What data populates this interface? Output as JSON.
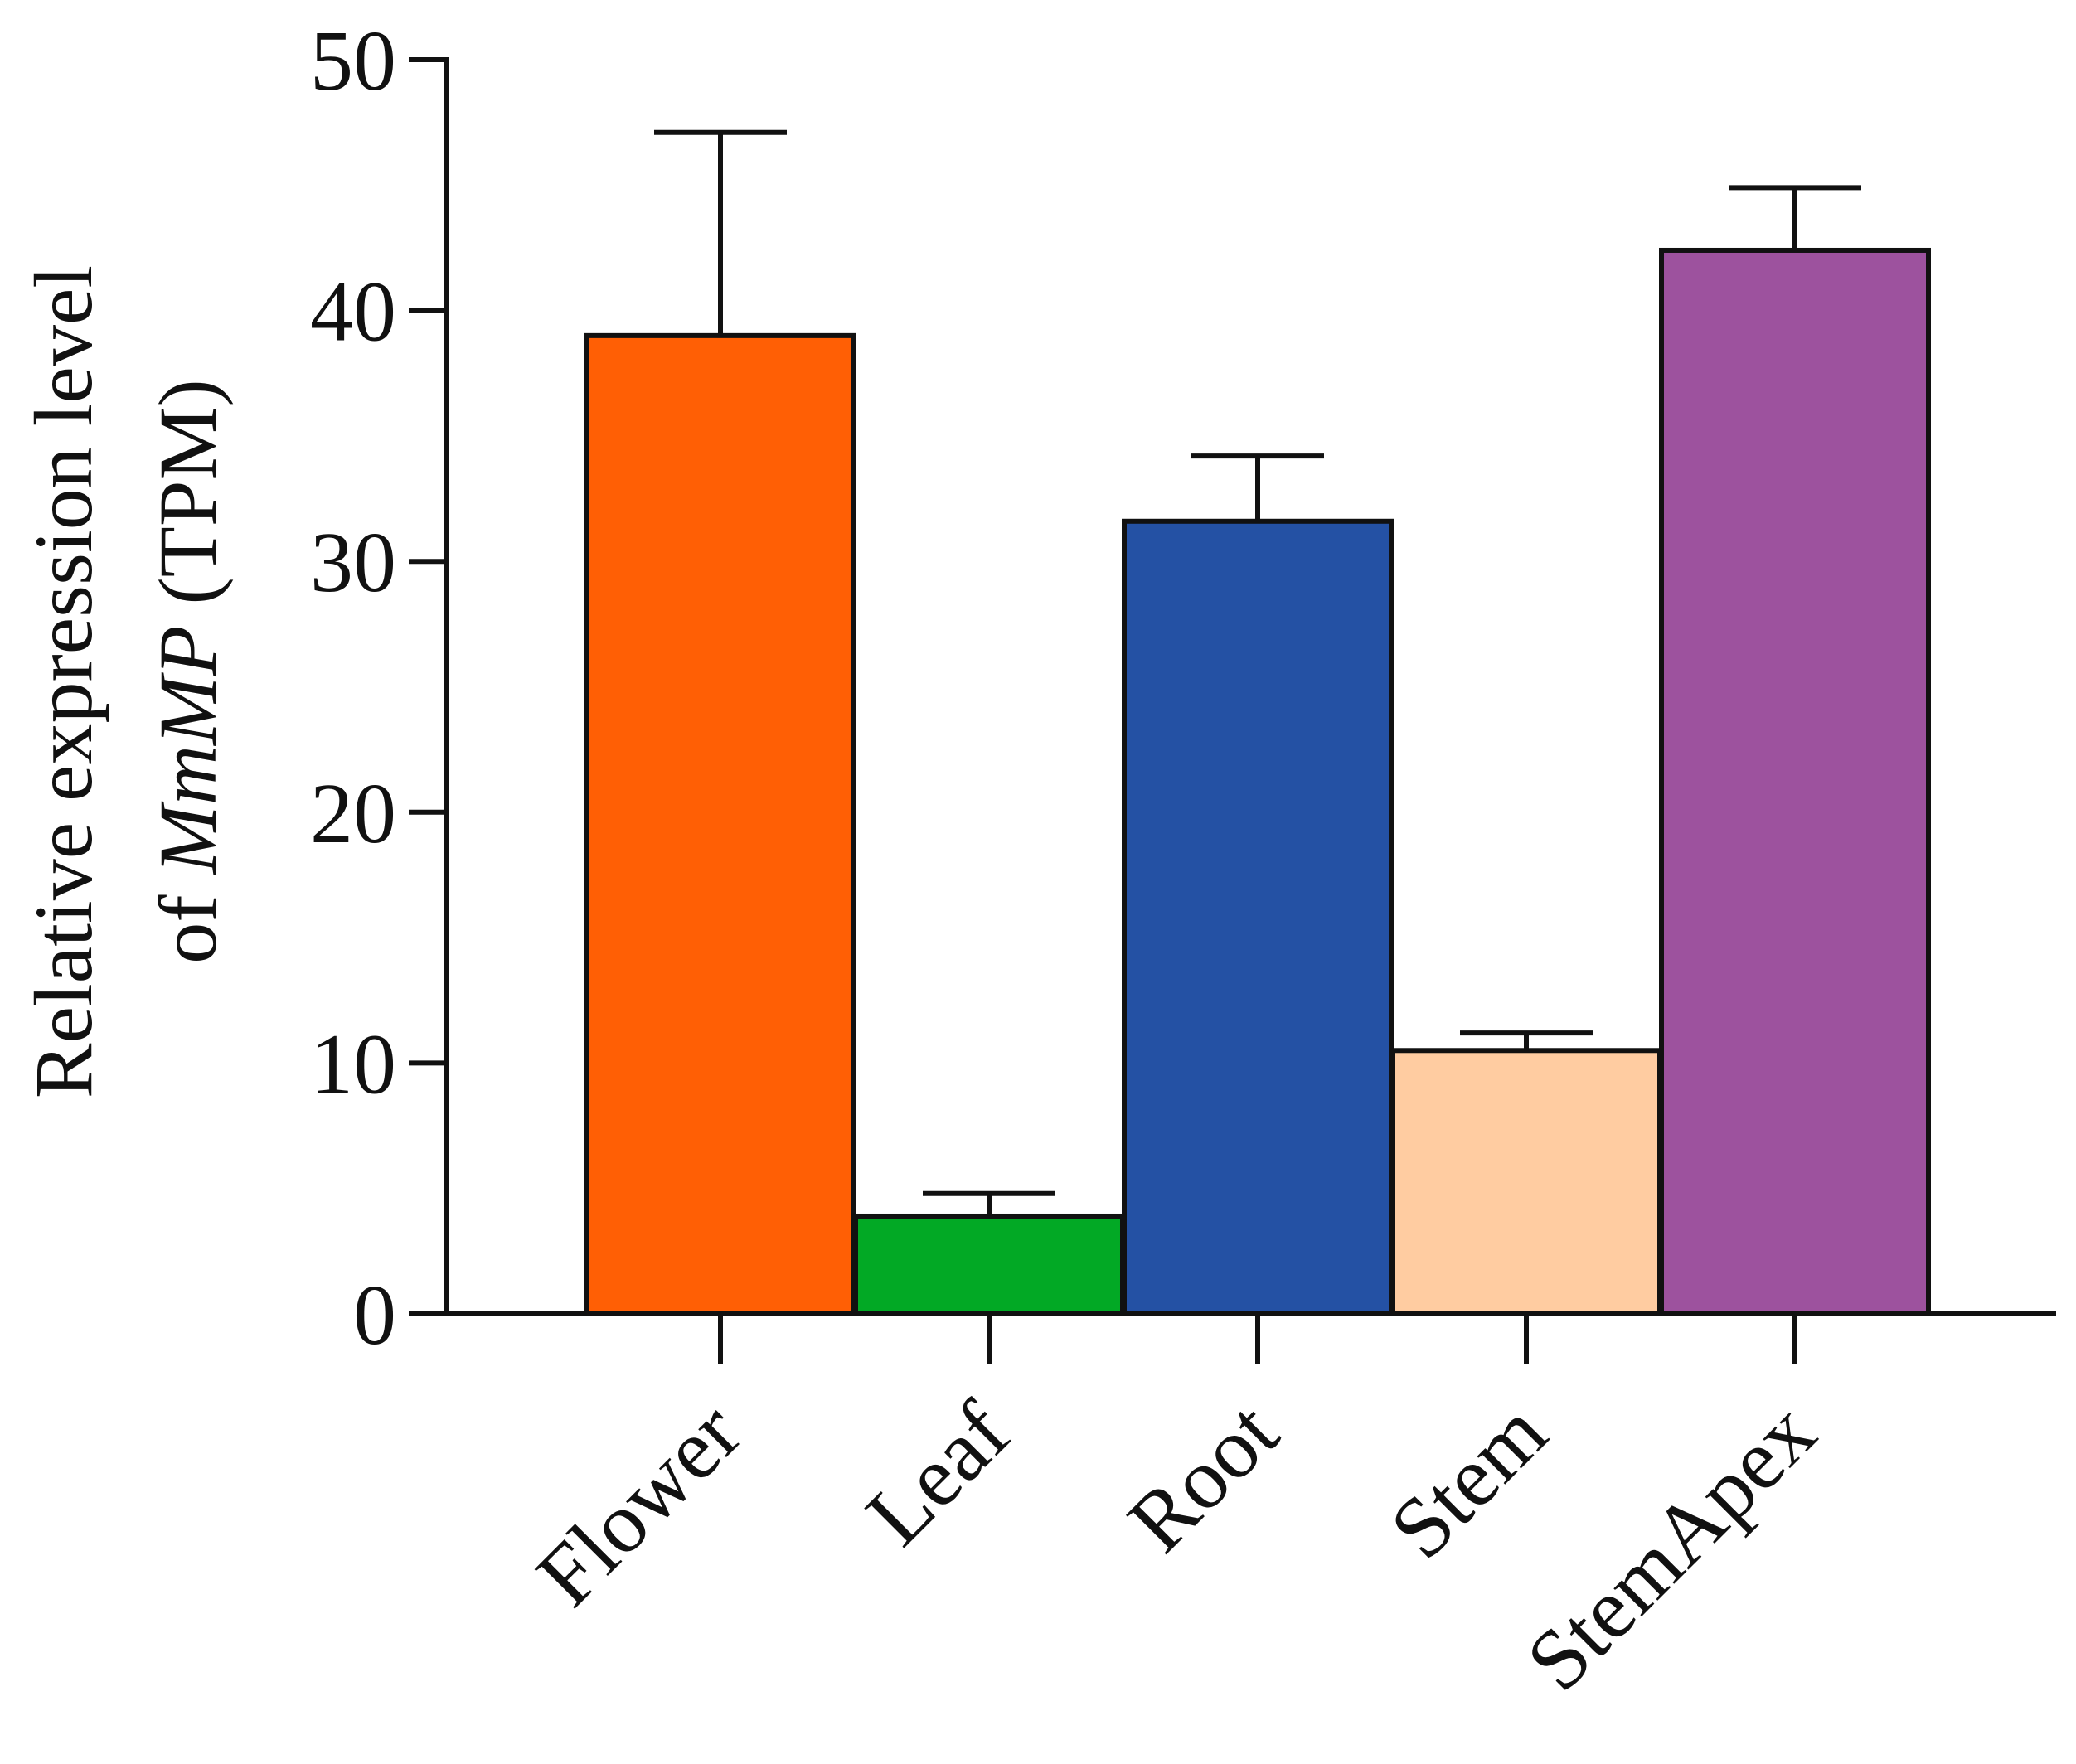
{
  "chart_data": {
    "type": "bar",
    "title": "",
    "xlabel": "",
    "ylabel_line1": "Relative expression level",
    "ylabel_line2_prefix": "of ",
    "ylabel_line2_gene": "MmMP",
    "ylabel_line2_suffix": " (TPM)",
    "ylim": [
      0,
      50
    ],
    "yticks": [
      0,
      10,
      20,
      30,
      40,
      50
    ],
    "grid": false,
    "categories": [
      "Flower",
      "Leaf",
      "Root",
      "Stem",
      "StemApex"
    ],
    "values": [
      39,
      3.9,
      31.6,
      10.5,
      42.4
    ],
    "errors": [
      8.1,
      0.9,
      2.6,
      0.7,
      2.5
    ],
    "colors": [
      "#ff5f05",
      "#02a925",
      "#2451a4",
      "#ffcca1",
      "#9d529e"
    ]
  }
}
